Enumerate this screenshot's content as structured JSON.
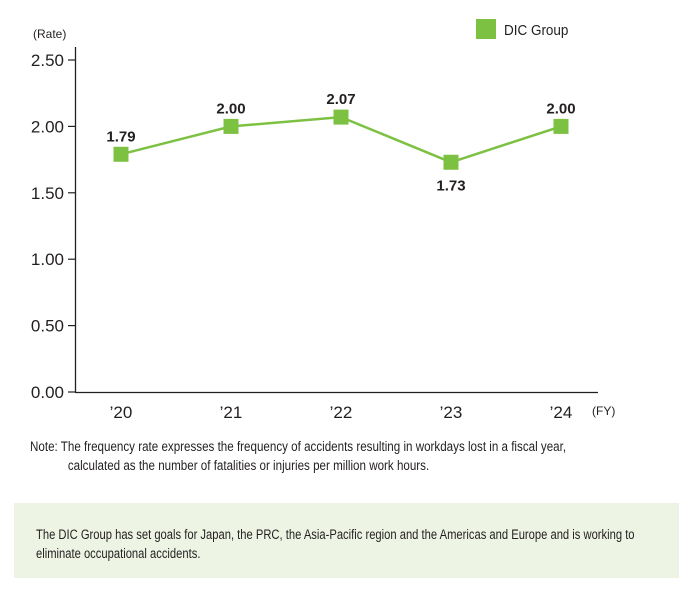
{
  "chart_data": {
    "type": "line",
    "title": "",
    "ylabel": "(Rate)",
    "xlabel": "(FY)",
    "ylim": [
      0,
      2.5
    ],
    "yticks": [
      "0.00",
      "0.50",
      "1.00",
      "1.50",
      "2.00",
      "2.50"
    ],
    "ytick_values": [
      0,
      0.5,
      1.0,
      1.5,
      2.0,
      2.5
    ],
    "categories": [
      "’20",
      "’21",
      "’22",
      "’23",
      "’24"
    ],
    "series": [
      {
        "name": "DIC Group",
        "color": "#7dc142",
        "values": [
          1.79,
          2.0,
          2.07,
          1.73,
          2.0
        ],
        "labels": [
          "1.79",
          "2.00",
          "2.07",
          "1.73",
          "2.00"
        ],
        "label_position": [
          "above",
          "above",
          "above",
          "below",
          "above"
        ]
      }
    ],
    "legend": {
      "position": "top-right"
    },
    "grid": false
  },
  "note": {
    "line1": "Note: The frequency rate expresses the frequency of accidents resulting in workdays lost in a fiscal year,",
    "line2": "calculated as the number of fatalities or injuries per million work hours."
  },
  "info_box": {
    "text": "The DIC Group has set goals for Japan, the PRC, the Asia-Pacific region and the Americas and Europe and is working to eliminate occupational accidents.",
    "background": "#edf4e3"
  }
}
